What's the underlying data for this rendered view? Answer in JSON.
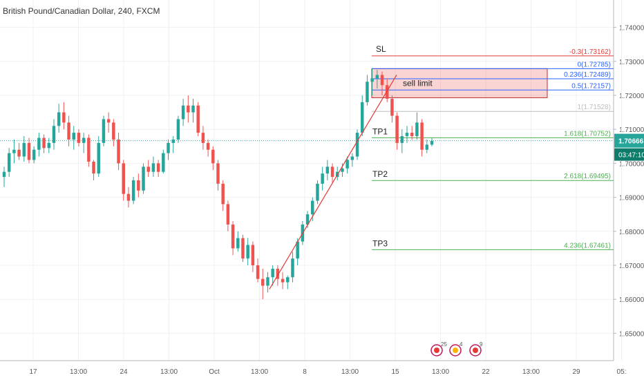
{
  "header": {
    "title": "British Pound/Canadian Dollar, 240, FXCM"
  },
  "chart_data": {
    "type": "candlestick",
    "price_axis": {
      "ylim": [
        1.645,
        1.745
      ],
      "ticks": [
        "1.74000",
        "1.73000",
        "1.72000",
        "1.71000",
        "1.70000",
        "1.69000",
        "1.68000",
        "1.67000",
        "1.66000",
        "1.65000"
      ]
    },
    "time_axis": {
      "ticks": [
        "17",
        "13:00",
        "24",
        "13:00",
        "Oct",
        "13:00",
        "8",
        "13:00",
        "15",
        "13:00",
        "22",
        "13:00",
        "29",
        "05:"
      ]
    },
    "current_price": {
      "value": "1.70666",
      "countdown": "03:47:10",
      "color": "#26a69a"
    },
    "colors": {
      "up": "#26a69a",
      "down": "#ef5350",
      "fib_blue": "#2962ff",
      "fib_red": "#e53935",
      "fib_green": "#4caf50"
    },
    "fib_levels": [
      {
        "label": "-0.3(1.73162)",
        "price": 1.73162,
        "color": "#e53935"
      },
      {
        "label": "0(1.72785)",
        "price": 1.72785,
        "color": "#2962ff"
      },
      {
        "label": "0.236(1.72489)",
        "price": 1.72489,
        "color": "#2962ff"
      },
      {
        "label": "0.5(1.72157)",
        "price": 1.72157,
        "color": "#2962ff"
      },
      {
        "label": "1(1.71528)",
        "price": 1.71528,
        "color": "#bdbdbd"
      },
      {
        "label": "1.618(1.70752)",
        "price": 1.70752,
        "color": "#4caf50"
      },
      {
        "label": "2.618(1.69495)",
        "price": 1.69495,
        "color": "#4caf50"
      },
      {
        "label": "4.236(1.67461)",
        "price": 1.67461,
        "color": "#4caf50"
      }
    ],
    "annotations": {
      "sl": "SL",
      "tp1": "TP1",
      "tp2": "TP2",
      "tp3": "TP3",
      "sell": "sell limit"
    },
    "sell_zone": {
      "top": 1.72785,
      "bottom": 1.7193
    },
    "trendline": {
      "from": 1.663,
      "to": 1.726
    },
    "events": [
      {
        "count": "25"
      },
      {
        "count": "4"
      },
      {
        "count": "9"
      }
    ],
    "candles": [
      [
        1.696,
        1.699,
        1.693,
        1.6975
      ],
      [
        1.6975,
        1.7045,
        1.696,
        1.703
      ],
      [
        1.703,
        1.707,
        1.7,
        1.704
      ],
      [
        1.704,
        1.706,
        1.701,
        1.702
      ],
      [
        1.702,
        1.708,
        1.7005,
        1.706
      ],
      [
        1.706,
        1.7075,
        1.7,
        1.701
      ],
      [
        1.701,
        1.705,
        1.7,
        1.704
      ],
      [
        1.704,
        1.709,
        1.702,
        1.7075
      ],
      [
        1.7075,
        1.7085,
        1.703,
        1.7045
      ],
      [
        1.7045,
        1.7075,
        1.703,
        1.706
      ],
      [
        1.706,
        1.713,
        1.704,
        1.711
      ],
      [
        1.711,
        1.7175,
        1.709,
        1.715
      ],
      [
        1.715,
        1.718,
        1.71,
        1.712
      ],
      [
        1.712,
        1.714,
        1.705,
        1.707
      ],
      [
        1.707,
        1.711,
        1.704,
        1.709
      ],
      [
        1.709,
        1.71,
        1.705,
        1.706
      ],
      [
        1.706,
        1.709,
        1.703,
        1.7075
      ],
      [
        1.7075,
        1.7085,
        1.699,
        1.7005
      ],
      [
        1.7005,
        1.701,
        1.695,
        1.697
      ],
      [
        1.697,
        1.708,
        1.696,
        1.706
      ],
      [
        1.706,
        1.714,
        1.705,
        1.713
      ],
      [
        1.713,
        1.715,
        1.709,
        1.712
      ],
      [
        1.712,
        1.713,
        1.705,
        1.707
      ],
      [
        1.707,
        1.709,
        1.698,
        1.7
      ],
      [
        1.7,
        1.701,
        1.689,
        1.691
      ],
      [
        1.691,
        1.693,
        1.687,
        1.689
      ],
      [
        1.689,
        1.696,
        1.688,
        1.695
      ],
      [
        1.695,
        1.697,
        1.69,
        1.692
      ],
      [
        1.692,
        1.7,
        1.691,
        1.699
      ],
      [
        1.699,
        1.701,
        1.696,
        1.6975
      ],
      [
        1.6975,
        1.702,
        1.696,
        1.7
      ],
      [
        1.7,
        1.701,
        1.696,
        1.6975
      ],
      [
        1.6975,
        1.704,
        1.697,
        1.703
      ],
      [
        1.703,
        1.707,
        1.701,
        1.706
      ],
      [
        1.706,
        1.708,
        1.703,
        1.707
      ],
      [
        1.707,
        1.714,
        1.706,
        1.713
      ],
      [
        1.713,
        1.719,
        1.711,
        1.717
      ],
      [
        1.717,
        1.72,
        1.712,
        1.715
      ],
      [
        1.715,
        1.719,
        1.712,
        1.717
      ],
      [
        1.717,
        1.718,
        1.708,
        1.709
      ],
      [
        1.709,
        1.711,
        1.704,
        1.706
      ],
      [
        1.706,
        1.707,
        1.702,
        1.704
      ],
      [
        1.704,
        1.705,
        1.698,
        1.7
      ],
      [
        1.7,
        1.701,
        1.692,
        1.694
      ],
      [
        1.694,
        1.695,
        1.686,
        1.688
      ],
      [
        1.688,
        1.689,
        1.68,
        1.682
      ],
      [
        1.682,
        1.683,
        1.673,
        1.675
      ],
      [
        1.675,
        1.68,
        1.674,
        1.678
      ],
      [
        1.678,
        1.679,
        1.671,
        1.672
      ],
      [
        1.672,
        1.678,
        1.67,
        1.676
      ],
      [
        1.676,
        1.677,
        1.668,
        1.67
      ],
      [
        1.67,
        1.672,
        1.665,
        1.666
      ],
      [
        1.666,
        1.669,
        1.66,
        1.664
      ],
      [
        1.664,
        1.668,
        1.662,
        1.6665
      ],
      [
        1.6665,
        1.67,
        1.664,
        1.669
      ],
      [
        1.669,
        1.67,
        1.664,
        1.666
      ],
      [
        1.666,
        1.668,
        1.663,
        1.665
      ],
      [
        1.665,
        1.667,
        1.663,
        1.6665
      ],
      [
        1.6665,
        1.674,
        1.665,
        1.672
      ],
      [
        1.672,
        1.678,
        1.67,
        1.677
      ],
      [
        1.677,
        1.683,
        1.676,
        1.682
      ],
      [
        1.682,
        1.686,
        1.681,
        1.685
      ],
      [
        1.685,
        1.69,
        1.683,
        1.689
      ],
      [
        1.689,
        1.695,
        1.688,
        1.694
      ],
      [
        1.694,
        1.699,
        1.692,
        1.697
      ],
      [
        1.697,
        1.701,
        1.695,
        1.699
      ],
      [
        1.699,
        1.7,
        1.694,
        1.696
      ],
      [
        1.696,
        1.699,
        1.695,
        1.6975
      ],
      [
        1.6975,
        1.7,
        1.696,
        1.6985
      ],
      [
        1.6985,
        1.702,
        1.697,
        1.701
      ],
      [
        1.701,
        1.703,
        1.699,
        1.702
      ],
      [
        1.702,
        1.71,
        1.701,
        1.709
      ],
      [
        1.709,
        1.72,
        1.708,
        1.718
      ],
      [
        1.718,
        1.726,
        1.717,
        1.724
      ],
      [
        1.724,
        1.728,
        1.72,
        1.725
      ],
      [
        1.725,
        1.7275,
        1.722,
        1.726
      ],
      [
        1.726,
        1.727,
        1.72,
        1.723
      ],
      [
        1.723,
        1.725,
        1.718,
        1.719
      ],
      [
        1.719,
        1.72,
        1.712,
        1.714
      ],
      [
        1.714,
        1.715,
        1.704,
        1.706
      ],
      [
        1.706,
        1.71,
        1.703,
        1.708
      ],
      [
        1.708,
        1.711,
        1.706,
        1.709
      ],
      [
        1.709,
        1.711,
        1.707,
        1.708
      ],
      [
        1.708,
        1.715,
        1.707,
        1.712
      ],
      [
        1.712,
        1.713,
        1.702,
        1.704
      ],
      [
        1.704,
        1.707,
        1.703,
        1.7055
      ],
      [
        1.7055,
        1.7075,
        1.705,
        1.7066
      ]
    ]
  }
}
